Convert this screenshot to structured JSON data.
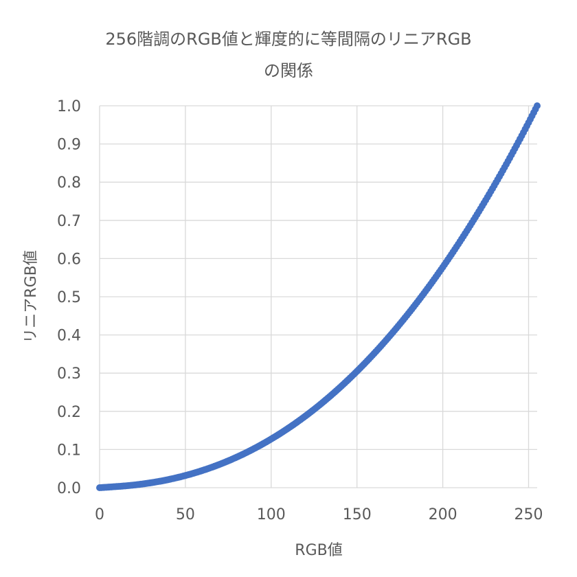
{
  "chart_data": {
    "type": "scatter",
    "title_lines": [
      "256階調のRGB値と輝度的に等間隔のリニアRGB",
      "の関係"
    ],
    "xlabel": "RGB値",
    "ylabel": "リニアRGB値",
    "xlim": [
      0,
      255
    ],
    "ylim": [
      0,
      1.0
    ],
    "x_ticks": [
      "0",
      "50",
      "100",
      "150",
      "200",
      "250"
    ],
    "y_ticks": [
      "0.0",
      "0.1",
      "0.2",
      "0.3",
      "0.4",
      "0.5",
      "0.6",
      "0.7",
      "0.8",
      "0.9",
      "1.0"
    ],
    "grid": true,
    "series_color": "#4472C4",
    "x_range": [
      0,
      255
    ],
    "y_formula": "sRGB linearization of x/255",
    "sample_points": [
      [
        0,
        0.0
      ],
      [
        50,
        0.032
      ],
      [
        100,
        0.127
      ],
      [
        150,
        0.305
      ],
      [
        200,
        0.578
      ],
      [
        255,
        1.0
      ]
    ]
  }
}
